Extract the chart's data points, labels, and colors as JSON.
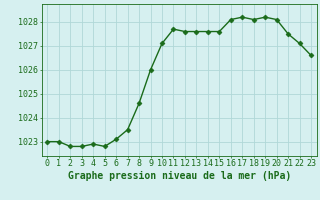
{
  "x": [
    0,
    1,
    2,
    3,
    4,
    5,
    6,
    7,
    8,
    9,
    10,
    11,
    12,
    13,
    14,
    15,
    16,
    17,
    18,
    19,
    20,
    21,
    22,
    23
  ],
  "y": [
    1023.0,
    1023.0,
    1022.8,
    1022.8,
    1022.9,
    1022.8,
    1023.1,
    1023.5,
    1024.6,
    1026.0,
    1027.1,
    1027.7,
    1027.6,
    1027.6,
    1027.6,
    1027.6,
    1028.1,
    1028.2,
    1028.1,
    1028.2,
    1028.1,
    1027.5,
    1027.1,
    1026.6
  ],
  "line_color": "#1a6b1a",
  "marker": "D",
  "marker_size": 2.5,
  "bg_color": "#d6f0f0",
  "grid_color": "#b0d8d8",
  "xlabel": "Graphe pression niveau de la mer (hPa)",
  "xlabel_fontsize": 7,
  "ylabel_ticks": [
    1023,
    1024,
    1025,
    1026,
    1027,
    1028
  ],
  "xtick_labels": [
    "0",
    "1",
    "2",
    "3",
    "4",
    "5",
    "6",
    "7",
    "8",
    "9",
    "10",
    "11",
    "12",
    "13",
    "14",
    "15",
    "16",
    "17",
    "18",
    "19",
    "20",
    "21",
    "22",
    "23"
  ],
  "ylim": [
    1022.4,
    1028.75
  ],
  "xlim": [
    -0.5,
    23.5
  ],
  "ytick_fontsize": 6,
  "xtick_fontsize": 6
}
